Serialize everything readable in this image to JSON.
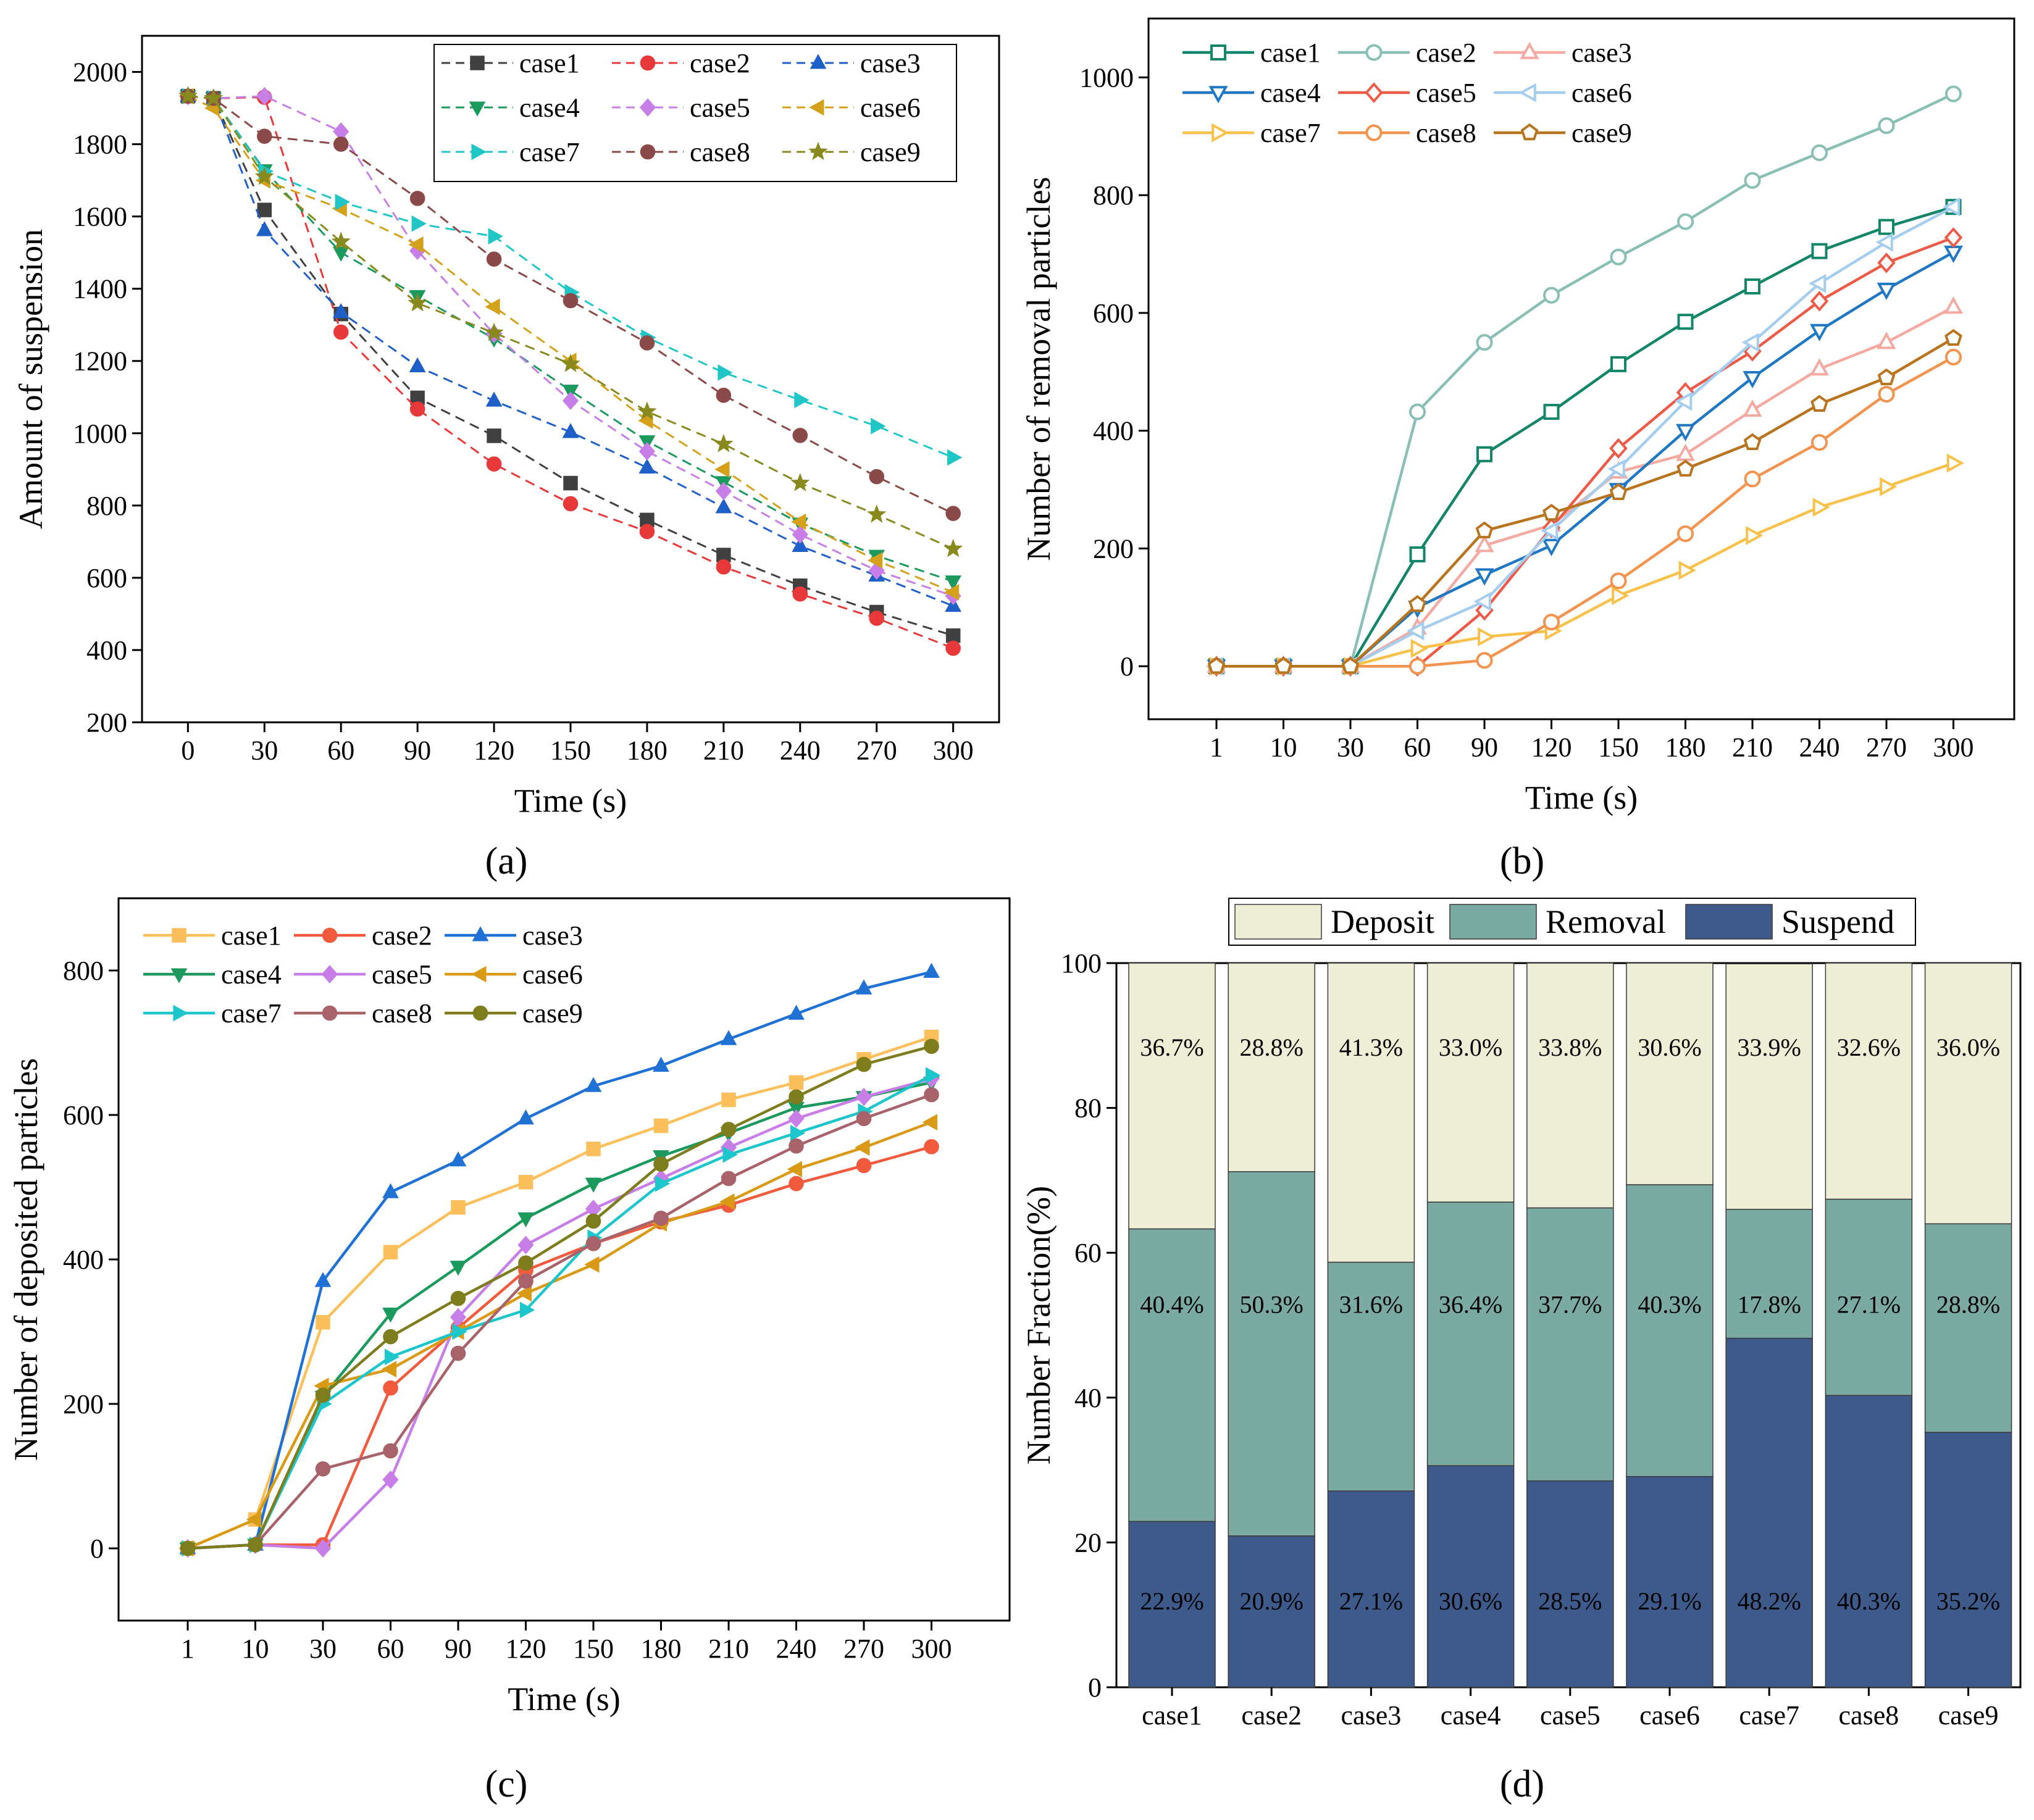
{
  "figure": {
    "panel_labels": [
      "(a)",
      "(b)",
      "(c)",
      "(d)"
    ]
  },
  "chart_data": [
    {
      "id": "a",
      "type": "line",
      "xlabel": "Time (s)",
      "ylabel": "Amount of suspension",
      "x_ticks": [
        "0",
        "30",
        "60",
        "90",
        "120",
        "150",
        "180",
        "210",
        "240",
        "270",
        "300"
      ],
      "y_ticks": [
        200,
        400,
        600,
        800,
        1000,
        1200,
        1400,
        1600,
        1800,
        2000
      ],
      "ylim": [
        200,
        2100
      ],
      "line_style": "dashed",
      "series": [
        {
          "name": "case1",
          "color": "#404040",
          "marker": "square",
          "x": [
            0,
            10,
            30,
            60,
            90,
            120,
            150,
            180,
            210,
            240,
            270,
            300
          ],
          "values": [
            1933,
            1927,
            1618,
            1330,
            1098,
            993,
            862,
            760,
            663,
            578,
            505,
            440
          ]
        },
        {
          "name": "case2",
          "color": "#e8393a",
          "marker": "circle",
          "x": [
            0,
            10,
            30,
            60,
            90,
            120,
            150,
            180,
            210,
            240,
            270,
            300
          ],
          "values": [
            1933,
            1927,
            1930,
            1280,
            1067,
            915,
            805,
            728,
            630,
            555,
            488,
            405
          ]
        },
        {
          "name": "case3",
          "color": "#1f5fc8",
          "marker": "triangle-up",
          "x": [
            0,
            10,
            30,
            60,
            90,
            120,
            150,
            180,
            210,
            240,
            270,
            300
          ],
          "values": [
            1933,
            1927,
            1562,
            1335,
            1185,
            1090,
            1003,
            905,
            795,
            688,
            606,
            522
          ]
        },
        {
          "name": "case4",
          "color": "#1c9a5e",
          "marker": "triangle-down",
          "x": [
            0,
            10,
            30,
            60,
            90,
            120,
            150,
            180,
            210,
            240,
            270,
            300
          ],
          "values": [
            1933,
            1927,
            1728,
            1500,
            1380,
            1262,
            1118,
            978,
            865,
            750,
            661,
            590
          ]
        },
        {
          "name": "case5",
          "color": "#c77ee6",
          "marker": "diamond",
          "x": [
            0,
            10,
            30,
            60,
            90,
            120,
            150,
            180,
            210,
            240,
            270,
            300
          ],
          "values": [
            1933,
            1927,
            1933,
            1835,
            1505,
            1275,
            1090,
            950,
            840,
            720,
            620,
            550
          ]
        },
        {
          "name": "case6",
          "color": "#d4a11b",
          "marker": "triangle-left",
          "x": [
            0,
            10,
            30,
            60,
            90,
            120,
            150,
            180,
            210,
            240,
            270,
            300
          ],
          "values": [
            1933,
            1900,
            1700,
            1622,
            1522,
            1350,
            1200,
            1035,
            900,
            755,
            648,
            560
          ]
        },
        {
          "name": "case7",
          "color": "#20c6c6",
          "marker": "triangle-right",
          "x": [
            0,
            10,
            30,
            60,
            90,
            120,
            150,
            180,
            210,
            240,
            270,
            300
          ],
          "values": [
            1933,
            1927,
            1725,
            1640,
            1580,
            1545,
            1390,
            1265,
            1168,
            1092,
            1020,
            933
          ]
        },
        {
          "name": "case8",
          "color": "#8b4a4a",
          "marker": "circle",
          "x": [
            0,
            10,
            30,
            60,
            90,
            120,
            150,
            180,
            210,
            240,
            270,
            300
          ],
          "values": [
            1933,
            1927,
            1822,
            1800,
            1650,
            1482,
            1367,
            1250,
            1105,
            994,
            880,
            778
          ]
        },
        {
          "name": "case9",
          "color": "#888a1e",
          "marker": "star",
          "x": [
            0,
            10,
            30,
            60,
            90,
            120,
            150,
            180,
            210,
            240,
            270,
            300
          ],
          "values": [
            1933,
            1927,
            1710,
            1530,
            1360,
            1278,
            1192,
            1060,
            970,
            862,
            775,
            680
          ]
        }
      ]
    },
    {
      "id": "b",
      "type": "line",
      "xlabel": "Time (s)",
      "ylabel": "Number of removal particles",
      "categories": [
        "1",
        "10",
        "30",
        "60",
        "90",
        "120",
        "150",
        "180",
        "210",
        "240",
        "270",
        "300"
      ],
      "y_ticks": [
        0,
        200,
        400,
        600,
        800,
        1000
      ],
      "ylim": [
        -90,
        1100
      ],
      "line_style": "solid",
      "series": [
        {
          "name": "case1",
          "color": "#13866a",
          "marker": "square-open",
          "values": [
            0,
            0,
            0,
            190,
            360,
            432,
            513,
            585,
            645,
            705,
            746,
            780
          ]
        },
        {
          "name": "case2",
          "color": "#89bfb4",
          "marker": "circle-open",
          "values": [
            0,
            0,
            0,
            432,
            550,
            630,
            695,
            755,
            825,
            872,
            918,
            972
          ]
        },
        {
          "name": "case3",
          "color": "#f4aaa0",
          "marker": "triangle-up-open",
          "values": [
            0,
            0,
            0,
            65,
            205,
            240,
            330,
            360,
            435,
            505,
            550,
            610
          ]
        },
        {
          "name": "case4",
          "color": "#1f78c1",
          "marker": "triangle-down-open",
          "values": [
            0,
            0,
            0,
            100,
            155,
            205,
            300,
            400,
            490,
            570,
            640,
            703
          ]
        },
        {
          "name": "case5",
          "color": "#ec5a48",
          "marker": "diamond-open",
          "values": [
            0,
            0,
            0,
            0,
            95,
            235,
            370,
            465,
            535,
            620,
            685,
            728
          ]
        },
        {
          "name": "case6",
          "color": "#a5cdee",
          "marker": "triangle-left-open",
          "values": [
            0,
            0,
            0,
            60,
            110,
            230,
            335,
            450,
            550,
            650,
            720,
            780
          ]
        },
        {
          "name": "case7",
          "color": "#f8c14a",
          "marker": "triangle-right-open",
          "values": [
            0,
            0,
            0,
            30,
            50,
            60,
            120,
            163,
            222,
            270,
            305,
            345
          ]
        },
        {
          "name": "case8",
          "color": "#f29450",
          "marker": "circle-open",
          "values": [
            0,
            0,
            0,
            0,
            10,
            75,
            145,
            225,
            318,
            380,
            462,
            525
          ]
        },
        {
          "name": "case9",
          "color": "#b8741f",
          "marker": "pentagon-open",
          "values": [
            0,
            0,
            0,
            105,
            230,
            260,
            295,
            335,
            380,
            445,
            490,
            557
          ]
        }
      ]
    },
    {
      "id": "c",
      "type": "line",
      "xlabel": "Time (s)",
      "ylabel": "Number of deposited particles",
      "categories": [
        "1",
        "10",
        "30",
        "60",
        "90",
        "120",
        "150",
        "180",
        "210",
        "240",
        "270",
        "300"
      ],
      "y_ticks": [
        0,
        200,
        400,
        600,
        800
      ],
      "ylim": [
        -100,
        900
      ],
      "line_style": "solid",
      "series": [
        {
          "name": "case1",
          "color": "#fbc05b",
          "marker": "square",
          "values": [
            0,
            40,
            313,
            410,
            472,
            507,
            553,
            585,
            621,
            645,
            677,
            708
          ]
        },
        {
          "name": "case2",
          "color": "#f15a3c",
          "marker": "circle",
          "values": [
            0,
            5,
            5,
            222,
            305,
            385,
            422,
            452,
            475,
            505,
            530,
            556
          ]
        },
        {
          "name": "case3",
          "color": "#1f72d4",
          "marker": "triangle-up",
          "values": [
            0,
            5,
            370,
            493,
            537,
            595,
            640,
            668,
            705,
            740,
            775,
            798
          ]
        },
        {
          "name": "case4",
          "color": "#1c9a5e",
          "marker": "triangle-down",
          "values": [
            0,
            5,
            210,
            325,
            390,
            457,
            505,
            543,
            575,
            610,
            625,
            645
          ]
        },
        {
          "name": "case5",
          "color": "#c77ee6",
          "marker": "diamond",
          "values": [
            0,
            5,
            0,
            95,
            320,
            420,
            470,
            512,
            555,
            595,
            625,
            650
          ]
        },
        {
          "name": "case6",
          "color": "#d99a15",
          "marker": "triangle-left",
          "values": [
            0,
            40,
            225,
            248,
            300,
            353,
            393,
            450,
            480,
            525,
            555,
            590
          ]
        },
        {
          "name": "case7",
          "color": "#1dc6cb",
          "marker": "triangle-right",
          "values": [
            0,
            5,
            200,
            265,
            300,
            330,
            430,
            505,
            545,
            575,
            605,
            655
          ]
        },
        {
          "name": "case8",
          "color": "#a8626a",
          "marker": "circle",
          "values": [
            0,
            5,
            110,
            135,
            270,
            370,
            422,
            457,
            512,
            557,
            595,
            628
          ]
        },
        {
          "name": "case9",
          "color": "#7d7d1e",
          "marker": "circle",
          "values": [
            0,
            5,
            212,
            293,
            346,
            395,
            453,
            532,
            580,
            625,
            670,
            695
          ]
        }
      ]
    },
    {
      "id": "d",
      "type": "bar",
      "stacked": true,
      "ylabel": "Number Fraction(%)",
      "categories": [
        "case1",
        "case2",
        "case3",
        "case4",
        "case5",
        "case6",
        "case7",
        "case8",
        "case9"
      ],
      "y_ticks": [
        0,
        20,
        40,
        60,
        80,
        100
      ],
      "ylim": [
        0,
        100
      ],
      "series": [
        {
          "name": "Suspend",
          "color": "#3e5a8a",
          "values": [
            22.9,
            20.9,
            27.1,
            30.6,
            28.5,
            29.1,
            48.2,
            40.3,
            35.2
          ],
          "labels": [
            "22.9%",
            "20.9%",
            "27.1%",
            "30.6%",
            "28.5%",
            "29.1%",
            "48.2%",
            "40.3%",
            "35.2%"
          ]
        },
        {
          "name": "Removal",
          "color": "#7aaaa2",
          "values": [
            40.4,
            50.3,
            31.6,
            36.4,
            37.7,
            40.3,
            17.8,
            27.1,
            28.8
          ],
          "labels": [
            "40.4%",
            "50.3%",
            "31.6%",
            "36.4%",
            "37.7%",
            "40.3%",
            "17.8%",
            "27.1%",
            "28.8%"
          ]
        },
        {
          "name": "Deposit",
          "color": "#eeeed6",
          "values": [
            36.7,
            28.8,
            41.3,
            33.0,
            33.8,
            30.6,
            33.9,
            32.6,
            36.0
          ],
          "labels": [
            "36.7%",
            "28.8%",
            "41.3%",
            "33.0%",
            "33.8%",
            "30.6%",
            "33.9%",
            "32.6%",
            "36.0%"
          ]
        }
      ],
      "legend_order": [
        "Deposit",
        "Removal",
        "Suspend"
      ]
    }
  ]
}
